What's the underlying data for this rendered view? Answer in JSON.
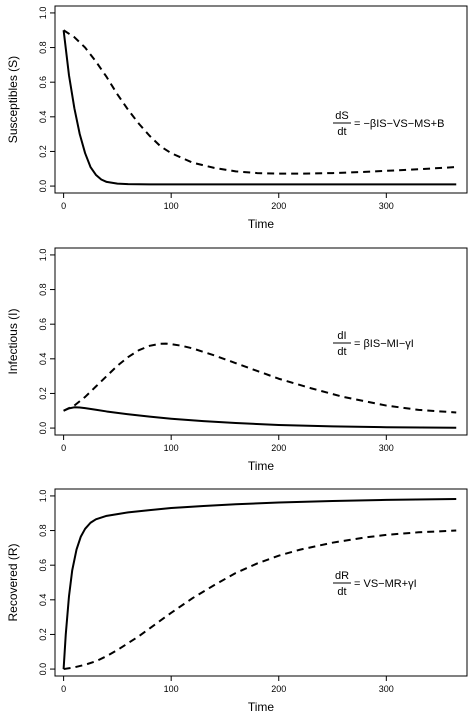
{
  "chart_data": [
    {
      "type": "line",
      "xlabel": "Time",
      "ylabel": "Susceptibles (S)",
      "xlim": [
        -8,
        375
      ],
      "ylim": [
        -0.04,
        1.04
      ],
      "x_ticks": [
        "0",
        "100",
        "200",
        "300"
      ],
      "y_ticks": [
        "0.0",
        "0.2",
        "0.4",
        "0.6",
        "0.8",
        "1.0"
      ],
      "equation": {
        "num": "dS",
        "den": "dt",
        "rhs": "= −βIS−VS−MS+B"
      },
      "series": [
        {
          "style": "solid",
          "x": [
            0,
            5,
            10,
            15,
            20,
            25,
            30,
            35,
            40,
            50,
            60,
            80,
            100,
            150,
            200,
            250,
            300,
            365
          ],
          "y": [
            0.9,
            0.64,
            0.45,
            0.3,
            0.19,
            0.11,
            0.065,
            0.038,
            0.024,
            0.014,
            0.011,
            0.01,
            0.01,
            0.01,
            0.01,
            0.01,
            0.01,
            0.01
          ]
        },
        {
          "style": "dashed",
          "x": [
            0,
            10,
            20,
            30,
            40,
            50,
            60,
            70,
            80,
            90,
            100,
            120,
            140,
            160,
            180,
            200,
            220,
            250,
            280,
            300,
            330,
            365
          ],
          "y": [
            0.9,
            0.86,
            0.8,
            0.72,
            0.63,
            0.53,
            0.44,
            0.36,
            0.29,
            0.23,
            0.19,
            0.135,
            0.105,
            0.085,
            0.075,
            0.072,
            0.072,
            0.075,
            0.082,
            0.088,
            0.097,
            0.11
          ]
        }
      ]
    },
    {
      "type": "line",
      "xlabel": "Time",
      "ylabel": "Infectious (I)",
      "xlim": [
        -8,
        375
      ],
      "ylim": [
        -0.04,
        1.04
      ],
      "x_ticks": [
        "0",
        "100",
        "200",
        "300"
      ],
      "y_ticks": [
        "0.0",
        "0.2",
        "0.4",
        "0.6",
        "0.8",
        "1.0"
      ],
      "equation": {
        "num": "dI",
        "den": "dt",
        "rhs": "= βIS−MI−γI"
      },
      "series": [
        {
          "style": "solid",
          "x": [
            0,
            5,
            10,
            15,
            20,
            30,
            40,
            60,
            80,
            100,
            130,
            160,
            200,
            250,
            300,
            365
          ],
          "y": [
            0.1,
            0.114,
            0.12,
            0.119,
            0.115,
            0.106,
            0.096,
            0.08,
            0.066,
            0.054,
            0.04,
            0.029,
            0.018,
            0.01,
            0.005,
            0.002
          ]
        },
        {
          "style": "dashed",
          "x": [
            0,
            10,
            20,
            30,
            40,
            50,
            60,
            70,
            80,
            90,
            95,
            100,
            110,
            120,
            140,
            160,
            180,
            200,
            230,
            260,
            300,
            330,
            365
          ],
          "y": [
            0.1,
            0.13,
            0.18,
            0.24,
            0.3,
            0.36,
            0.41,
            0.45,
            0.475,
            0.487,
            0.488,
            0.485,
            0.475,
            0.46,
            0.42,
            0.375,
            0.33,
            0.285,
            0.23,
            0.18,
            0.13,
            0.105,
            0.09
          ]
        }
      ]
    },
    {
      "type": "line",
      "xlabel": "Time",
      "ylabel": "Recovered (R)",
      "xlim": [
        -8,
        375
      ],
      "ylim": [
        -0.04,
        1.04
      ],
      "x_ticks": [
        "0",
        "100",
        "200",
        "300"
      ],
      "y_ticks": [
        "0.0",
        "0.2",
        "0.4",
        "0.6",
        "0.8",
        "1.0"
      ],
      "equation": {
        "num": "dR",
        "den": "dt",
        "rhs": "= VS−MR+γI"
      },
      "series": [
        {
          "style": "solid",
          "x": [
            0,
            2,
            5,
            8,
            12,
            16,
            20,
            25,
            30,
            40,
            50,
            60,
            80,
            100,
            130,
            160,
            200,
            250,
            300,
            365
          ],
          "y": [
            0.0,
            0.2,
            0.42,
            0.57,
            0.69,
            0.765,
            0.81,
            0.845,
            0.865,
            0.885,
            0.895,
            0.905,
            0.918,
            0.93,
            0.942,
            0.952,
            0.962,
            0.971,
            0.977,
            0.982
          ]
        },
        {
          "style": "dashed",
          "x": [
            0,
            10,
            20,
            30,
            40,
            50,
            60,
            70,
            80,
            90,
            100,
            120,
            140,
            160,
            180,
            200,
            220,
            250,
            280,
            300,
            330,
            365
          ],
          "y": [
            0.0,
            0.01,
            0.025,
            0.045,
            0.075,
            0.11,
            0.15,
            0.19,
            0.235,
            0.28,
            0.325,
            0.41,
            0.485,
            0.555,
            0.61,
            0.655,
            0.69,
            0.73,
            0.76,
            0.775,
            0.79,
            0.8
          ]
        }
      ]
    }
  ]
}
